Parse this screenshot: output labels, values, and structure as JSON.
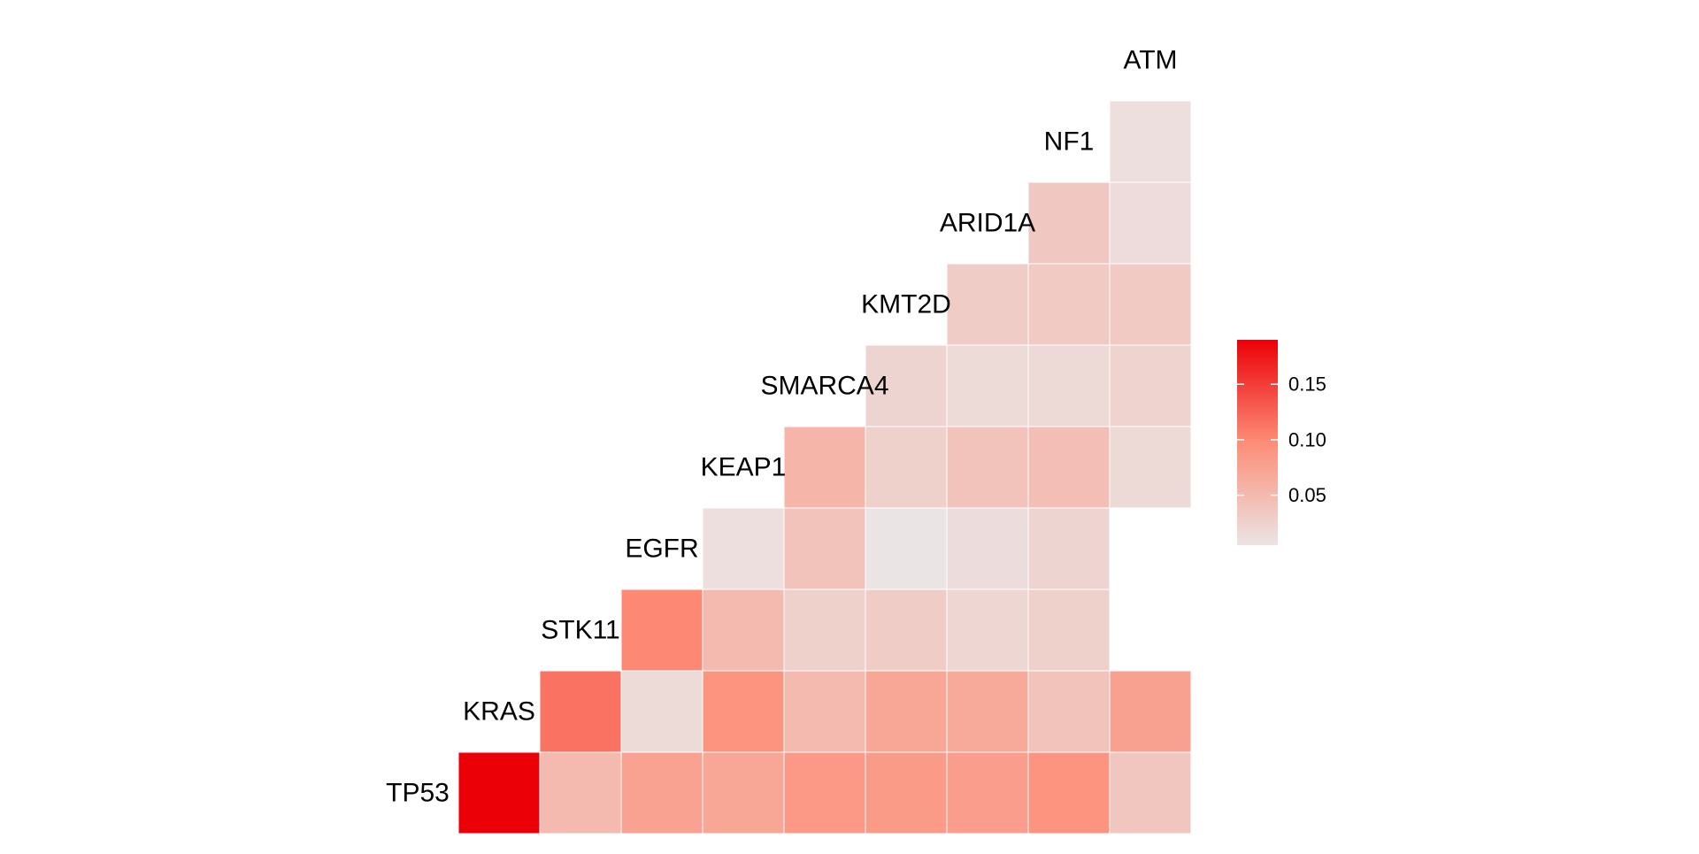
{
  "chart_data": {
    "type": "heatmap",
    "title": "",
    "xlabel": "",
    "ylabel": "",
    "genes": [
      "TP53",
      "KRAS",
      "STK11",
      "EGFR",
      "KEAP1",
      "SMARCA4",
      "KMT2D",
      "ARID1A",
      "NF1",
      "ATM"
    ],
    "matrix": [
      [
        0.19,
        0.05,
        0.075,
        0.07,
        0.085,
        0.083,
        0.08,
        0.09,
        0.037
      ],
      [
        0.115,
        0.015,
        0.09,
        0.05,
        0.07,
        0.068,
        0.04,
        0.076
      ],
      [
        0.1,
        0.05,
        0.025,
        0.03,
        0.02,
        0.025
      ],
      [
        0.01,
        0.04,
        0.005,
        0.012,
        0.022
      ],
      [
        0.055,
        0.025,
        0.04,
        0.045,
        0.017
      ],
      [
        0.022,
        0.015,
        0.017,
        0.023
      ],
      [
        0.03,
        0.033,
        0.033
      ],
      [
        0.035,
        0.013
      ],
      [
        0.01
      ]
    ],
    "color_scale": {
      "low_color": "#ebe4e4",
      "mid_color": "#fd8d77",
      "high_color": "#eb0007",
      "min": 0.005,
      "max": 0.19
    },
    "legend": {
      "position": "right",
      "ticks": [
        "0.05",
        "0.10",
        "0.15"
      ],
      "tick_values": [
        0.05,
        0.1,
        0.15
      ]
    },
    "grid": false
  }
}
